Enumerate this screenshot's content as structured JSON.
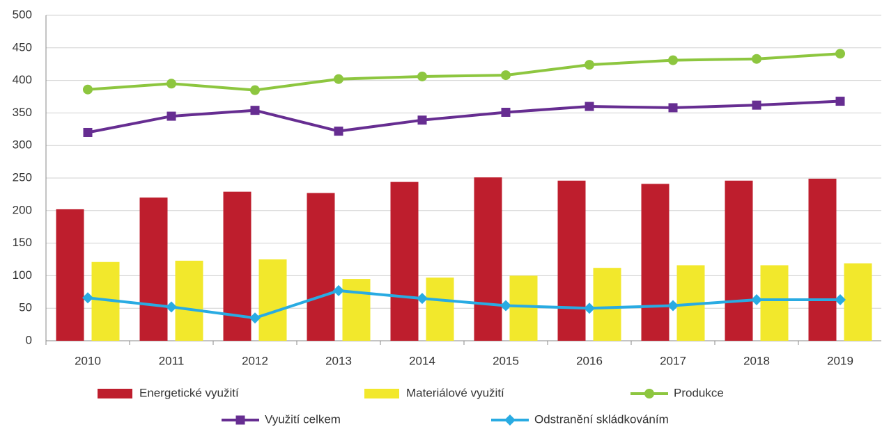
{
  "chart_data": {
    "type": "bar_line",
    "categories": [
      "2010",
      "2011",
      "2012",
      "2013",
      "2014",
      "2015",
      "2016",
      "2017",
      "2018",
      "2019"
    ],
    "series": [
      {
        "name": "Energetické využití",
        "type": "bar",
        "color": "#be1e2d",
        "values": [
          202,
          220,
          229,
          227,
          244,
          251,
          246,
          241,
          246,
          249
        ]
      },
      {
        "name": "Materiálové využití",
        "type": "bar",
        "color": "#f2e82c",
        "values": [
          121,
          123,
          125,
          95,
          97,
          100,
          112,
          116,
          116,
          119
        ]
      },
      {
        "name": "Produkce",
        "type": "line",
        "marker": "circle",
        "color": "#8dc63f",
        "values": [
          386,
          395,
          385,
          402,
          406,
          408,
          424,
          431,
          433,
          441
        ]
      },
      {
        "name": "Využití celkem",
        "type": "line",
        "marker": "square",
        "color": "#662d91",
        "values": [
          320,
          345,
          354,
          322,
          339,
          351,
          360,
          358,
          362,
          368
        ]
      },
      {
        "name": "Odstranění skládkováním",
        "type": "line",
        "marker": "diamond",
        "color": "#29abe2",
        "values": [
          66,
          52,
          35,
          77,
          65,
          54,
          50,
          54,
          63,
          63
        ]
      }
    ],
    "ylim": [
      0,
      500
    ],
    "yticks": [
      0,
      50,
      100,
      150,
      200,
      250,
      300,
      350,
      400,
      450,
      500
    ],
    "grid": true,
    "legend": "bottom"
  }
}
